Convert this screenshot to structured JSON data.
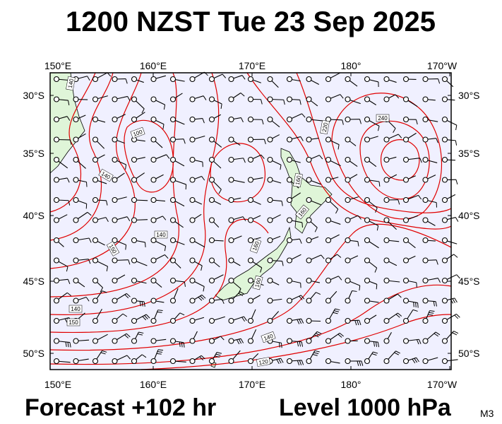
{
  "title": "1200 NZST Tue 23 Sep 2025",
  "lon_labels": [
    "150°E",
    "160°E",
    "170°E",
    "180°",
    "170°W"
  ],
  "lat_labels": [
    "30°S",
    "35°S",
    "40°S",
    "45°S",
    "50°S"
  ],
  "contour_labels": [
    140,
    100,
    140,
    150,
    140,
    140,
    150,
    160,
    160,
    220,
    240,
    160,
    140,
    120,
    160
  ],
  "footer": {
    "forecast": "Forecast +102 hr",
    "level": "Level 1000 hPa",
    "model": "M3"
  }
}
